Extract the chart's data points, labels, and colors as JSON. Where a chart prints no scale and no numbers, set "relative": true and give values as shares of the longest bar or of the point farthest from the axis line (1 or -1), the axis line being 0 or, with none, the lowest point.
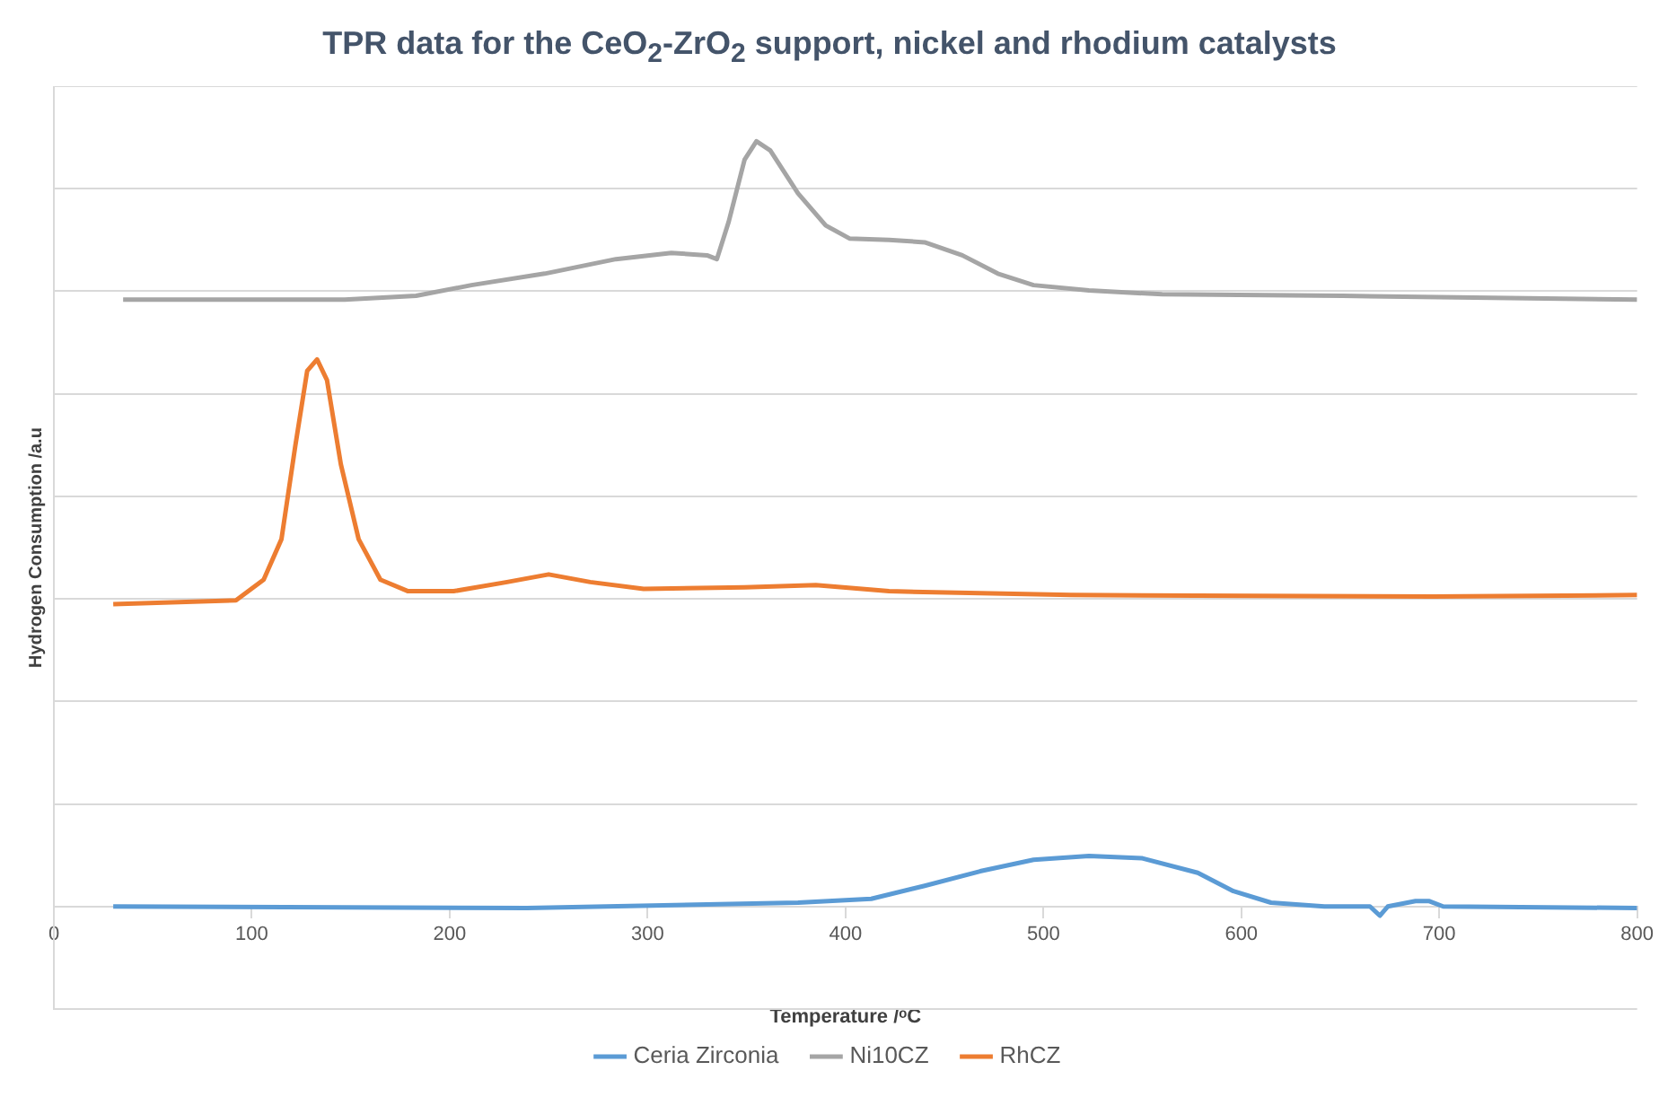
{
  "chart_data": {
    "type": "line",
    "title": "TPR data for the CeO$_{2}$-ZrO$_{2}$ support, nickel and rhodium catalysts",
    "xlabel": "Temperature /ᵒC",
    "ylabel": "Hydrogen Consumption /a.u",
    "relative": true,
    "xlim": [
      0,
      800
    ],
    "xticks": [
      0,
      100,
      200,
      300,
      400,
      500,
      600,
      700,
      800
    ],
    "grid": "y",
    "legend": "bottom",
    "marker": "none",
    "line_style": "solid",
    "series": [
      {
        "name": "Ceria Zirconia",
        "color": "#5b9bd5",
        "x": [
          30,
          239,
          376,
          413,
          440,
          468,
          495,
          523,
          550,
          578,
          596,
          615,
          642,
          665,
          670,
          674,
          688,
          695,
          702,
          800
        ],
        "values": [
          0,
          -0.002,
          0.005,
          0.01,
          0.027,
          0.046,
          0.061,
          0.066,
          0.063,
          0.044,
          0.02,
          0.005,
          0,
          0,
          -0.012,
          0,
          0.007,
          0.007,
          0,
          -0.002
        ]
      },
      {
        "name": "Ni10CZ",
        "color": "#a5a5a5",
        "x": [
          35,
          147,
          183,
          211,
          248,
          284,
          312,
          330,
          335,
          341,
          349,
          355,
          362,
          376,
          390,
          402,
          422,
          440,
          459,
          477,
          495,
          523,
          560,
          651,
          800
        ],
        "values": [
          0.793,
          0.793,
          0.798,
          0.812,
          0.827,
          0.846,
          0.854,
          0.851,
          0.846,
          0.895,
          0.976,
          1,
          0.988,
          0.932,
          0.89,
          0.873,
          0.871,
          0.868,
          0.851,
          0.827,
          0.812,
          0.805,
          0.8,
          0.798,
          0.793
        ]
      },
      {
        "name": "RhCZ",
        "color": "#ed7d31",
        "x": [
          30,
          92,
          106,
          115,
          122,
          128,
          133,
          138,
          145,
          154,
          165,
          179,
          202,
          229,
          250,
          271,
          298,
          349,
          385,
          422,
          514,
          697,
          800
        ],
        "values": [
          0.395,
          0.4,
          0.427,
          0.48,
          0.602,
          0.7,
          0.715,
          0.688,
          0.578,
          0.48,
          0.427,
          0.412,
          0.412,
          0.424,
          0.434,
          0.424,
          0.415,
          0.417,
          0.42,
          0.412,
          0.407,
          0.405,
          0.407
        ]
      }
    ]
  }
}
